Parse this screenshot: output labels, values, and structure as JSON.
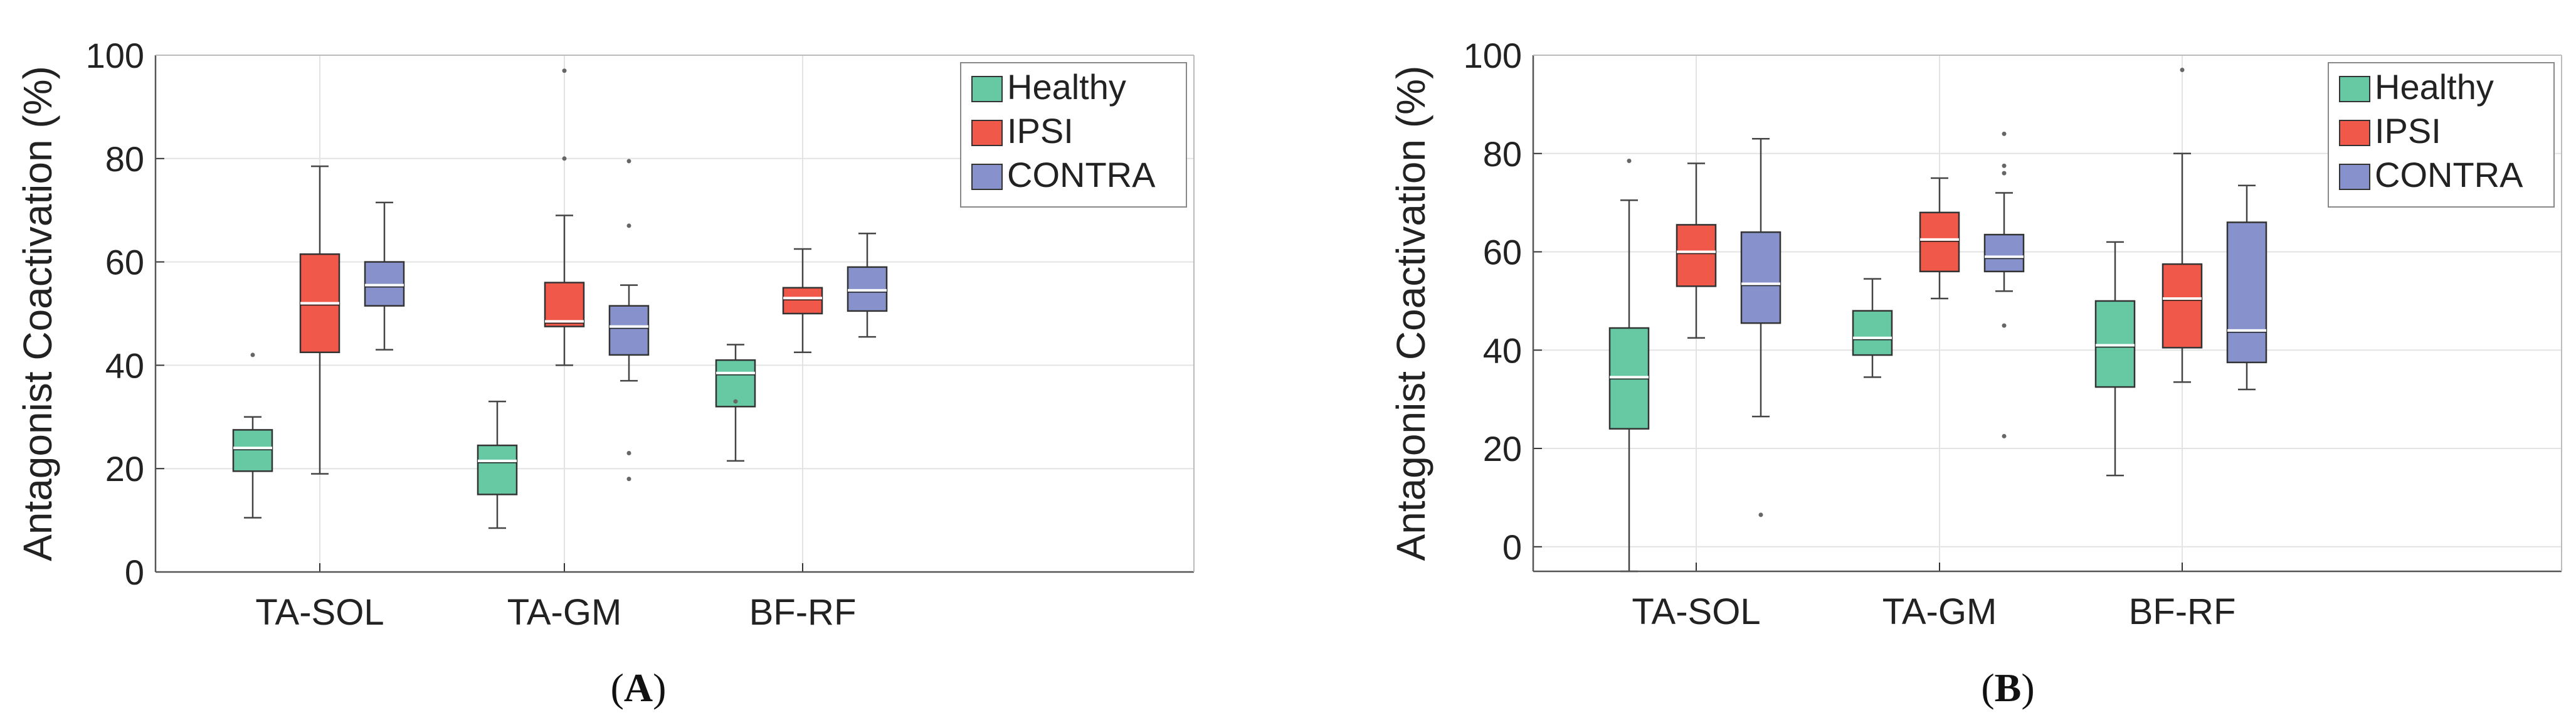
{
  "chart_data": [
    {
      "type": "boxplot",
      "panel_label": "(A)",
      "panel_letter": "A",
      "ylabel": "Antagonist Coactivation (%)",
      "xlabel": "",
      "ylim": [
        0,
        100
      ],
      "yticks": [
        0,
        20,
        40,
        60,
        80,
        100
      ],
      "grid": true,
      "legend_position": "top-right",
      "categories": [
        "TA-SOL",
        "TA-GM",
        "BF-RF"
      ],
      "series": [
        {
          "name": "Healthy",
          "color": "#66c9a4",
          "boxes": [
            {
              "whisker_low": 10.5,
              "q1": 19.5,
              "median": 24.0,
              "q3": 27.5,
              "whisker_high": 30.0,
              "outliers": [
                42.0
              ]
            },
            {
              "whisker_low": 8.5,
              "q1": 15.0,
              "median": 21.5,
              "q3": 24.5,
              "whisker_high": 33.0,
              "outliers": []
            },
            {
              "whisker_low": 21.5,
              "q1": 32.0,
              "median": 38.5,
              "q3": 41.0,
              "whisker_high": 44.0,
              "outliers": [
                33.0
              ]
            }
          ]
        },
        {
          "name": "IPSI",
          "color": "#f0584a",
          "boxes": [
            {
              "whisker_low": 19.0,
              "q1": 42.5,
              "median": 52.0,
              "q3": 61.5,
              "whisker_high": 78.5,
              "outliers": []
            },
            {
              "whisker_low": 40.0,
              "q1": 47.5,
              "median": 48.5,
              "q3": 56.0,
              "whisker_high": 69.0,
              "outliers": [
                80.0,
                97.0
              ]
            },
            {
              "whisker_low": 42.5,
              "q1": 50.0,
              "median": 53.0,
              "q3": 55.0,
              "whisker_high": 62.5,
              "outliers": []
            }
          ]
        },
        {
          "name": "CONTRA",
          "color": "#8792cc",
          "boxes": [
            {
              "whisker_low": 43.0,
              "q1": 51.5,
              "median": 55.5,
              "q3": 60.0,
              "whisker_high": 71.5,
              "outliers": []
            },
            {
              "whisker_low": 37.0,
              "q1": 42.0,
              "median": 47.5,
              "q3": 51.5,
              "whisker_high": 55.5,
              "outliers": [
                18.0,
                23.0,
                67.0,
                79.5
              ]
            },
            {
              "whisker_low": 45.5,
              "q1": 50.5,
              "median": 54.5,
              "q3": 59.0,
              "whisker_high": 65.5,
              "outliers": []
            }
          ]
        }
      ]
    },
    {
      "type": "boxplot",
      "panel_label": "(B)",
      "panel_letter": "B",
      "ylabel": "Antagonist Coactivation (%)",
      "xlabel": "",
      "ylim": [
        -5,
        100
      ],
      "yticks": [
        0,
        20,
        40,
        60,
        80,
        100
      ],
      "grid": true,
      "legend_position": "top-right",
      "categories": [
        "TA-SOL",
        "TA-GM",
        "BF-RF"
      ],
      "series": [
        {
          "name": "Healthy",
          "color": "#66c9a4",
          "boxes": [
            {
              "whisker_low": -5.0,
              "q1": 24.0,
              "median": 34.5,
              "q3": 44.5,
              "whisker_high": 70.5,
              "outliers": [
                78.5
              ]
            },
            {
              "whisker_low": 34.5,
              "q1": 39.0,
              "median": 42.5,
              "q3": 48.0,
              "whisker_high": 54.5,
              "outliers": []
            },
            {
              "whisker_low": 14.5,
              "q1": 32.5,
              "median": 41.0,
              "q3": 50.0,
              "whisker_high": 62.0,
              "outliers": []
            }
          ]
        },
        {
          "name": "IPSI",
          "color": "#f0584a",
          "boxes": [
            {
              "whisker_low": 42.5,
              "q1": 53.0,
              "median": 60.0,
              "q3": 65.5,
              "whisker_high": 78.0,
              "outliers": []
            },
            {
              "whisker_low": 50.5,
              "q1": 56.0,
              "median": 62.5,
              "q3": 68.0,
              "whisker_high": 75.0,
              "outliers": []
            },
            {
              "whisker_low": 33.5,
              "q1": 40.5,
              "median": 50.5,
              "q3": 57.5,
              "whisker_high": 80.0,
              "outliers": [
                97.0
              ]
            }
          ]
        },
        {
          "name": "CONTRA",
          "color": "#8792cc",
          "boxes": [
            {
              "whisker_low": 26.5,
              "q1": 45.5,
              "median": 53.5,
              "q3": 64.0,
              "whisker_high": 83.0,
              "outliers": [
                6.5
              ]
            },
            {
              "whisker_low": 52.0,
              "q1": 56.0,
              "median": 59.0,
              "q3": 63.5,
              "whisker_high": 72.0,
              "outliers": [
                22.5,
                45.0,
                76.0,
                77.5,
                84.0
              ]
            },
            {
              "whisker_low": 32.0,
              "q1": 37.5,
              "median": 44.0,
              "q3": 66.0,
              "whisker_high": 73.5,
              "outliers": []
            }
          ]
        }
      ]
    }
  ]
}
